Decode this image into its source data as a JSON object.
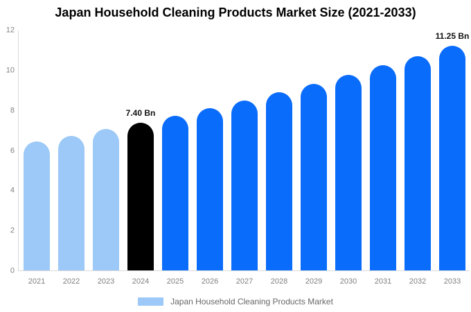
{
  "title": "Japan Household Cleaning Products Market Size (2021-2033)",
  "legend": {
    "label": "Japan Household Cleaning Products Market"
  },
  "colors": {
    "bar_light": "#9CC9F7",
    "bar_primary": "#0A6CFB",
    "bar_highlight": "#000000",
    "axis_line": "#D9D9D9",
    "tick_text": "#808080",
    "annotation_text": "#111111",
    "legend_text": "#666666"
  },
  "chart_data": {
    "type": "bar",
    "title": "Japan Household Cleaning Products Market Size (2021-2033)",
    "categories": [
      "2021",
      "2022",
      "2023",
      "2024",
      "2025",
      "2026",
      "2027",
      "2028",
      "2029",
      "2030",
      "2031",
      "2032",
      "2033"
    ],
    "values": [
      6.44,
      6.74,
      7.06,
      7.4,
      7.75,
      8.12,
      8.51,
      8.91,
      9.34,
      9.78,
      10.25,
      10.73,
      11.25
    ],
    "unit": "Bn",
    "ylim": [
      0,
      12
    ],
    "yticks": [
      0,
      2,
      4,
      6,
      8,
      10,
      12
    ],
    "bar_color_keys": [
      "bar_light",
      "bar_light",
      "bar_light",
      "bar_highlight",
      "bar_primary",
      "bar_primary",
      "bar_primary",
      "bar_primary",
      "bar_primary",
      "bar_primary",
      "bar_primary",
      "bar_primary",
      "bar_primary"
    ],
    "annotations": [
      {
        "index": 3,
        "text": "7.40 Bn"
      },
      {
        "index": 12,
        "text": "11.25 Bn"
      }
    ],
    "legend_entries": [
      "Japan Household Cleaning Products Market"
    ],
    "legend_position": "bottom",
    "grid": false
  }
}
